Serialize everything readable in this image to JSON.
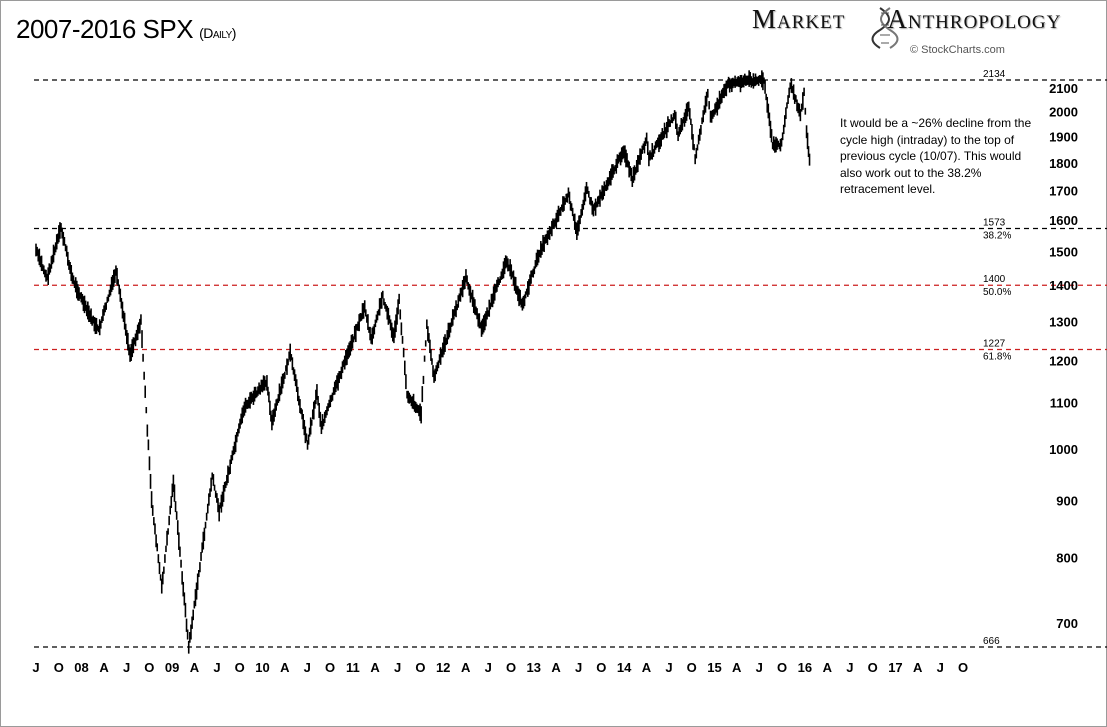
{
  "header": {
    "title": "2007-2016 SPX",
    "subtitle": "(Daily)",
    "brand_left": "Market",
    "brand_right": "Anthropology",
    "brand_icon": "dna-helix-icon",
    "source": "© StockCharts.com"
  },
  "annotation": "It would be a ~26% decline from the cycle high (intraday) to the top of previous cycle (10/07).  This would also work out to the 38.2% retracement level.",
  "colors": {
    "black_line": "#000000",
    "red_line": "#cc1f1f",
    "price_bars": "#000000"
  },
  "chart_data": {
    "type": "line",
    "title": "2007-2016 SPX",
    "subtitle": "(Daily)",
    "y_scale": "log",
    "ylim": [
      666,
      2134
    ],
    "x_range": [
      "2007-07",
      "2017-11"
    ],
    "y_ticks": [
      700,
      800,
      900,
      1000,
      1100,
      1200,
      1300,
      1400,
      1500,
      1600,
      1700,
      1800,
      1900,
      2000,
      2100
    ],
    "x_ticks": [
      {
        "label": "J",
        "date": "2007-07"
      },
      {
        "label": "O",
        "date": "2007-10"
      },
      {
        "label": "08",
        "date": "2008-01"
      },
      {
        "label": "A",
        "date": "2008-04"
      },
      {
        "label": "J",
        "date": "2008-07"
      },
      {
        "label": "O",
        "date": "2008-10"
      },
      {
        "label": "09",
        "date": "2009-01"
      },
      {
        "label": "A",
        "date": "2009-04"
      },
      {
        "label": "J",
        "date": "2009-07"
      },
      {
        "label": "O",
        "date": "2009-10"
      },
      {
        "label": "10",
        "date": "2010-01"
      },
      {
        "label": "A",
        "date": "2010-04"
      },
      {
        "label": "J",
        "date": "2010-07"
      },
      {
        "label": "O",
        "date": "2010-10"
      },
      {
        "label": "11",
        "date": "2011-01"
      },
      {
        "label": "A",
        "date": "2011-04"
      },
      {
        "label": "J",
        "date": "2011-07"
      },
      {
        "label": "O",
        "date": "2011-10"
      },
      {
        "label": "12",
        "date": "2012-01"
      },
      {
        "label": "A",
        "date": "2012-04"
      },
      {
        "label": "J",
        "date": "2012-07"
      },
      {
        "label": "O",
        "date": "2012-10"
      },
      {
        "label": "13",
        "date": "2013-01"
      },
      {
        "label": "A",
        "date": "2013-04"
      },
      {
        "label": "J",
        "date": "2013-07"
      },
      {
        "label": "O",
        "date": "2013-10"
      },
      {
        "label": "14",
        "date": "2014-01"
      },
      {
        "label": "A",
        "date": "2014-04"
      },
      {
        "label": "J",
        "date": "2014-07"
      },
      {
        "label": "O",
        "date": "2014-10"
      },
      {
        "label": "15",
        "date": "2015-01"
      },
      {
        "label": "A",
        "date": "2015-04"
      },
      {
        "label": "J",
        "date": "2015-07"
      },
      {
        "label": "O",
        "date": "2015-10"
      },
      {
        "label": "16",
        "date": "2016-01"
      },
      {
        "label": "A",
        "date": "2016-04"
      },
      {
        "label": "J",
        "date": "2016-07"
      },
      {
        "label": "O",
        "date": "2016-10"
      },
      {
        "label": "17",
        "date": "2017-01"
      },
      {
        "label": "A",
        "date": "2017-04"
      },
      {
        "label": "J",
        "date": "2017-07"
      },
      {
        "label": "O",
        "date": "2017-10"
      }
    ],
    "levels": [
      {
        "value": 2134,
        "label": "2134",
        "pct": "",
        "color": "#000000"
      },
      {
        "value": 1573,
        "label": "1573",
        "pct": "38.2%",
        "color": "#000000"
      },
      {
        "value": 1400,
        "label": "1400",
        "pct": "50.0%",
        "color": "#cc1f1f"
      },
      {
        "value": 1227,
        "label": "1227",
        "pct": "61.8%",
        "color": "#cc1f1f"
      },
      {
        "value": 666,
        "label": "666",
        "pct": "",
        "color": "#000000"
      }
    ],
    "series": [
      {
        "x": [
          "2007-07-01",
          "2007-08-15",
          "2007-10-10",
          "2007-11-25",
          "2008-01-22",
          "2008-03-10",
          "2008-05-19",
          "2008-07-15",
          "2008-08-28",
          "2008-10-10",
          "2008-11-20",
          "2009-01-06",
          "2009-03-09",
          "2009-06-12",
          "2009-07-10",
          "2009-10-20",
          "2010-01-19",
          "2010-02-08",
          "2010-04-23",
          "2010-07-02",
          "2010-08-09",
          "2010-08-27",
          "2011-02-18",
          "2011-03-16",
          "2011-05-02",
          "2011-06-16",
          "2011-07-07",
          "2011-08-08",
          "2011-10-04",
          "2011-10-27",
          "2011-11-25",
          "2012-04-02",
          "2012-06-04",
          "2012-09-14",
          "2012-11-16",
          "2013-01-25",
          "2013-05-21",
          "2013-06-24",
          "2013-08-02",
          "2013-08-30",
          "2013-12-31",
          "2014-02-03",
          "2014-04-02",
          "2014-04-11",
          "2014-07-24",
          "2014-08-07",
          "2014-09-19",
          "2014-10-15",
          "2014-12-05",
          "2014-12-16",
          "2015-02-27",
          "2015-05-21",
          "2015-07-20",
          "2015-08-24",
          "2015-09-29",
          "2015-11-03",
          "2015-12-14",
          "2015-12-29",
          "2016-01-08",
          "2016-01-20"
        ],
        "y": [
          1505,
          1420,
          1576,
          1420,
          1330,
          1275,
          1440,
          1214,
          1300,
          900,
          752,
          935,
          666,
          946,
          880,
          1090,
          1150,
          1055,
          1217,
          1010,
          1125,
          1047,
          1340,
          1250,
          1370,
          1258,
          1356,
          1120,
          1075,
          1292,
          1158,
          1422,
          1278,
          1475,
          1343,
          1500,
          1687,
          1560,
          1709,
          1633,
          1848,
          1738,
          1890,
          1815,
          1987,
          1905,
          2019,
          1821,
          2075,
          1973,
          2117,
          2134,
          2132,
          1867,
          1872,
          2116,
          1993,
          2081,
          1922,
          1812
        ]
      }
    ]
  }
}
